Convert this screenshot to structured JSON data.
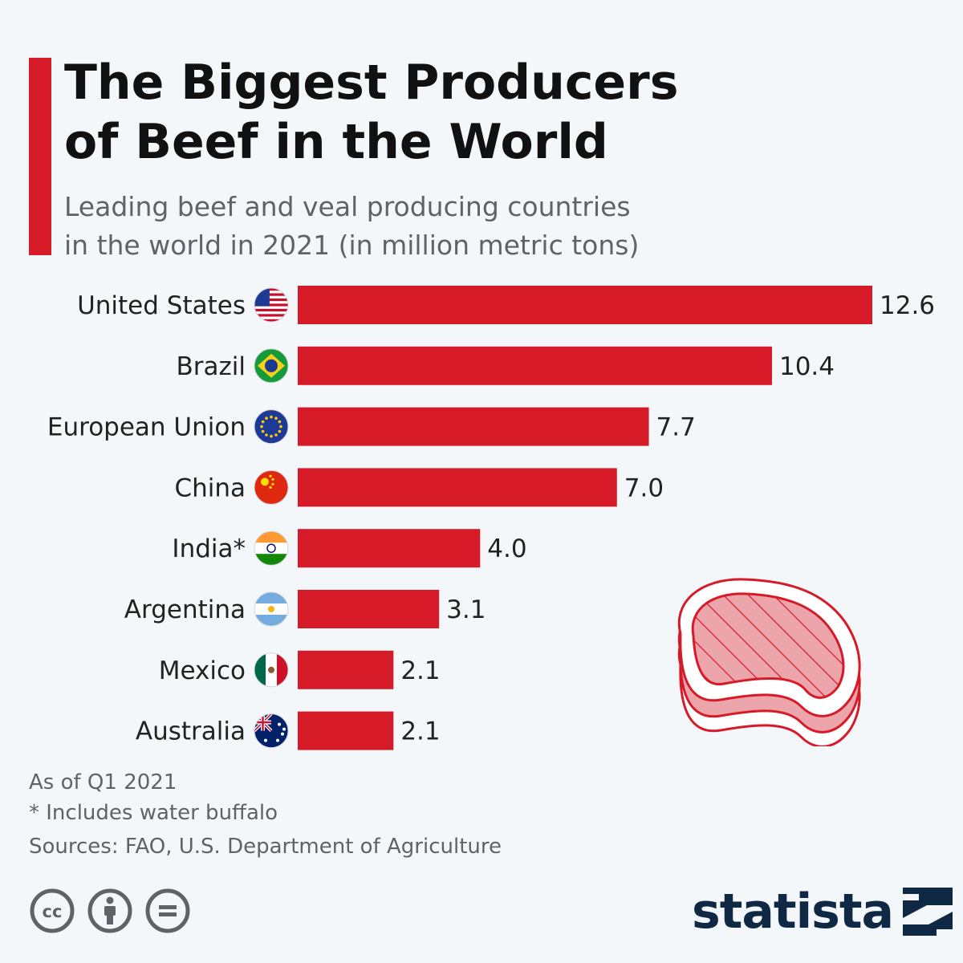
{
  "header": {
    "title_line1": "The Biggest Producers",
    "title_line2": "of Beef in the World",
    "subtitle_line1": "Leading beef and veal producing countries",
    "subtitle_line2": "in the world in 2021 (in million metric tons)"
  },
  "colors": {
    "accent": "#d71a28",
    "background": "#f4f7fa",
    "brand": "#0f2844"
  },
  "chart_data": {
    "type": "bar",
    "orientation": "horizontal",
    "categories": [
      "United States",
      "Brazil",
      "European Union",
      "China",
      "India*",
      "Argentina",
      "Mexico",
      "Australia"
    ],
    "values": [
      12.6,
      10.4,
      7.7,
      7.0,
      4.0,
      3.1,
      2.1,
      2.1
    ],
    "value_labels": [
      "12.6",
      "10.4",
      "7.7",
      "7.0",
      "4.0",
      "3.1",
      "2.1",
      "2.1"
    ],
    "flag_icons": [
      "us-flag-icon",
      "brazil-flag-icon",
      "eu-flag-icon",
      "china-flag-icon",
      "india-flag-icon",
      "argentina-flag-icon",
      "mexico-flag-icon",
      "australia-flag-icon"
    ],
    "title": "The Biggest Producers of Beef in the World",
    "xlim": [
      0,
      12.6
    ],
    "grid": false,
    "legend": "none"
  },
  "footer": {
    "note1": "As of Q1 2021",
    "note2": "* Includes water buffalo",
    "sources": "Sources: FAO, U.S. Department of Agriculture",
    "license_icons": [
      "creative-commons-icon",
      "attribution-icon",
      "no-derivatives-icon"
    ],
    "brand": "statista"
  }
}
